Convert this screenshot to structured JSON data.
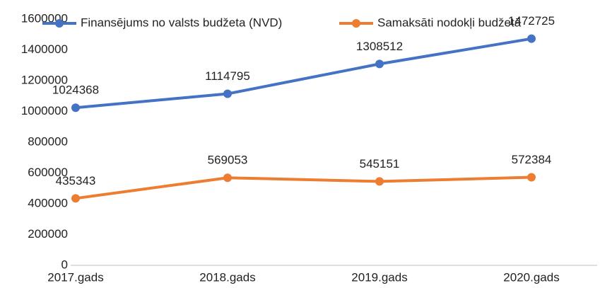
{
  "chart_data": {
    "type": "line",
    "categories": [
      "2017.gads",
      "2018.gads",
      "2019.gads",
      "2020.gads"
    ],
    "series": [
      {
        "name": "Finansējums no valsts budžeta (NVD)",
        "color": "#4472c4",
        "values": [
          1024368,
          1114795,
          1308512,
          1472725
        ]
      },
      {
        "name": "Samaksāti nodokļi budžetā",
        "color": "#ed7d31",
        "values": [
          435343,
          569053,
          545151,
          572384
        ]
      }
    ],
    "ylim": [
      0,
      1600000
    ],
    "yticks": [
      0,
      200000,
      400000,
      600000,
      800000,
      1000000,
      1200000,
      1400000,
      1600000
    ],
    "grid": false,
    "legend": "top",
    "data_labels": true
  }
}
